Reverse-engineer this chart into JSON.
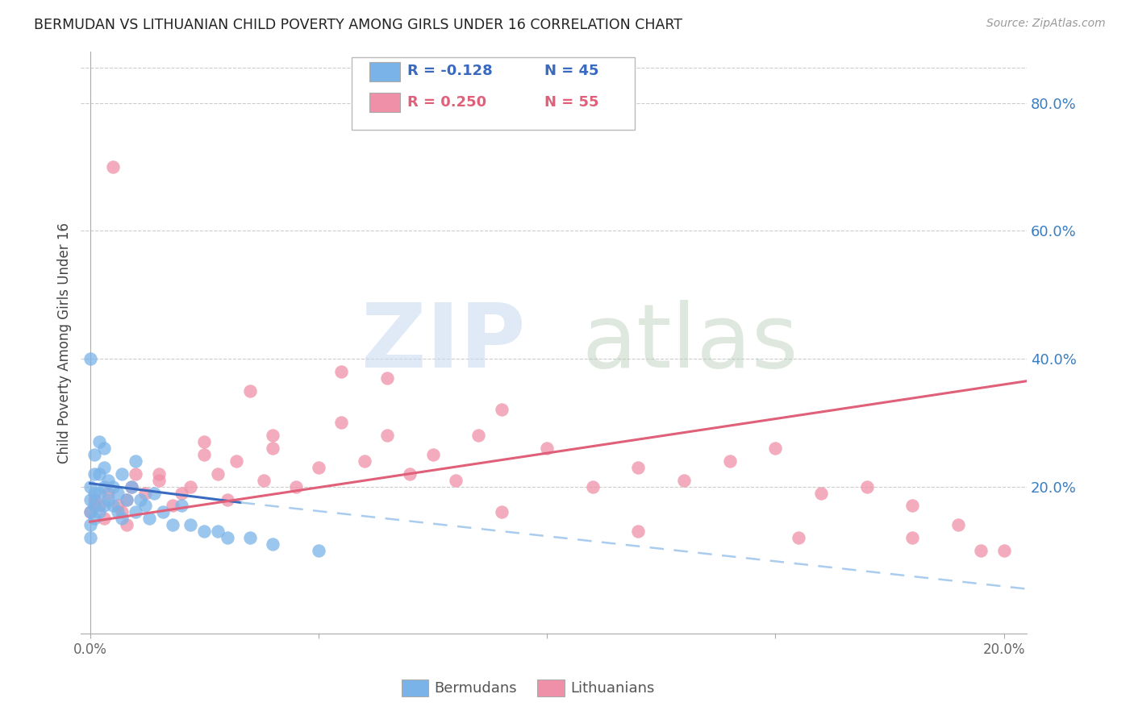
{
  "title": "BERMUDAN VS LITHUANIAN CHILD POVERTY AMONG GIRLS UNDER 16 CORRELATION CHART",
  "source": "Source: ZipAtlas.com",
  "ylabel": "Child Poverty Among Girls Under 16",
  "right_yticks": [
    "80.0%",
    "60.0%",
    "40.0%",
    "20.0%"
  ],
  "right_ytick_vals": [
    0.8,
    0.6,
    0.4,
    0.2
  ],
  "xlim": [
    -0.002,
    0.205
  ],
  "ylim": [
    -0.03,
    0.88
  ],
  "bermudans_color": "#7ab3e8",
  "lithuanians_color": "#f090a8",
  "trend_bermudans_color": "#3a6abf",
  "trend_lithuanians_color": "#e0607a",
  "trend_dash_color": "#aaccee",
  "legend_items": [
    {
      "label_r": "R = -0.128",
      "label_n": "N = 45",
      "color": "#aec6f0"
    },
    {
      "label_r": "R = 0.250",
      "label_n": "N = 55",
      "color": "#f4a0b0"
    }
  ],
  "bermudans_x": [
    0.0,
    0.0,
    0.0,
    0.0,
    0.001,
    0.001,
    0.001,
    0.001,
    0.001,
    0.002,
    0.002,
    0.002,
    0.002,
    0.003,
    0.003,
    0.003,
    0.003,
    0.004,
    0.004,
    0.005,
    0.005,
    0.006,
    0.006,
    0.007,
    0.007,
    0.008,
    0.009,
    0.01,
    0.01,
    0.011,
    0.012,
    0.013,
    0.014,
    0.016,
    0.018,
    0.02,
    0.022,
    0.025,
    0.028,
    0.03,
    0.035,
    0.04,
    0.05,
    0.0,
    0.0
  ],
  "bermudans_y": [
    0.14,
    0.16,
    0.18,
    0.2,
    0.15,
    0.17,
    0.19,
    0.22,
    0.25,
    0.16,
    0.19,
    0.22,
    0.27,
    0.17,
    0.2,
    0.23,
    0.26,
    0.18,
    0.21,
    0.17,
    0.2,
    0.16,
    0.19,
    0.15,
    0.22,
    0.18,
    0.2,
    0.16,
    0.24,
    0.18,
    0.17,
    0.15,
    0.19,
    0.16,
    0.14,
    0.17,
    0.14,
    0.13,
    0.13,
    0.12,
    0.12,
    0.11,
    0.1,
    0.12,
    0.4
  ],
  "lithuanians_x": [
    0.0,
    0.001,
    0.002,
    0.003,
    0.004,
    0.005,
    0.006,
    0.007,
    0.008,
    0.009,
    0.01,
    0.012,
    0.015,
    0.018,
    0.02,
    0.022,
    0.025,
    0.028,
    0.03,
    0.032,
    0.035,
    0.038,
    0.04,
    0.045,
    0.05,
    0.055,
    0.06,
    0.065,
    0.07,
    0.075,
    0.08,
    0.085,
    0.09,
    0.1,
    0.11,
    0.12,
    0.13,
    0.14,
    0.15,
    0.16,
    0.17,
    0.18,
    0.19,
    0.2,
    0.09,
    0.055,
    0.04,
    0.025,
    0.015,
    0.008,
    0.065,
    0.12,
    0.155,
    0.18,
    0.195
  ],
  "lithuanians_y": [
    0.16,
    0.18,
    0.17,
    0.15,
    0.19,
    0.7,
    0.17,
    0.16,
    0.18,
    0.2,
    0.22,
    0.19,
    0.21,
    0.17,
    0.19,
    0.2,
    0.27,
    0.22,
    0.18,
    0.24,
    0.35,
    0.21,
    0.26,
    0.2,
    0.23,
    0.3,
    0.24,
    0.28,
    0.22,
    0.25,
    0.21,
    0.28,
    0.32,
    0.26,
    0.2,
    0.23,
    0.21,
    0.24,
    0.26,
    0.19,
    0.2,
    0.17,
    0.14,
    0.1,
    0.16,
    0.38,
    0.28,
    0.25,
    0.22,
    0.14,
    0.37,
    0.13,
    0.12,
    0.12,
    0.1
  ],
  "trend_b_x0": 0.0,
  "trend_b_y0": 0.205,
  "trend_b_x1": 0.033,
  "trend_b_y1": 0.175,
  "trend_b_dash_x1": 0.205,
  "trend_b_dash_y1": 0.04,
  "trend_l_x0": 0.0,
  "trend_l_y0": 0.145,
  "trend_l_x1": 0.205,
  "trend_l_y1": 0.365
}
